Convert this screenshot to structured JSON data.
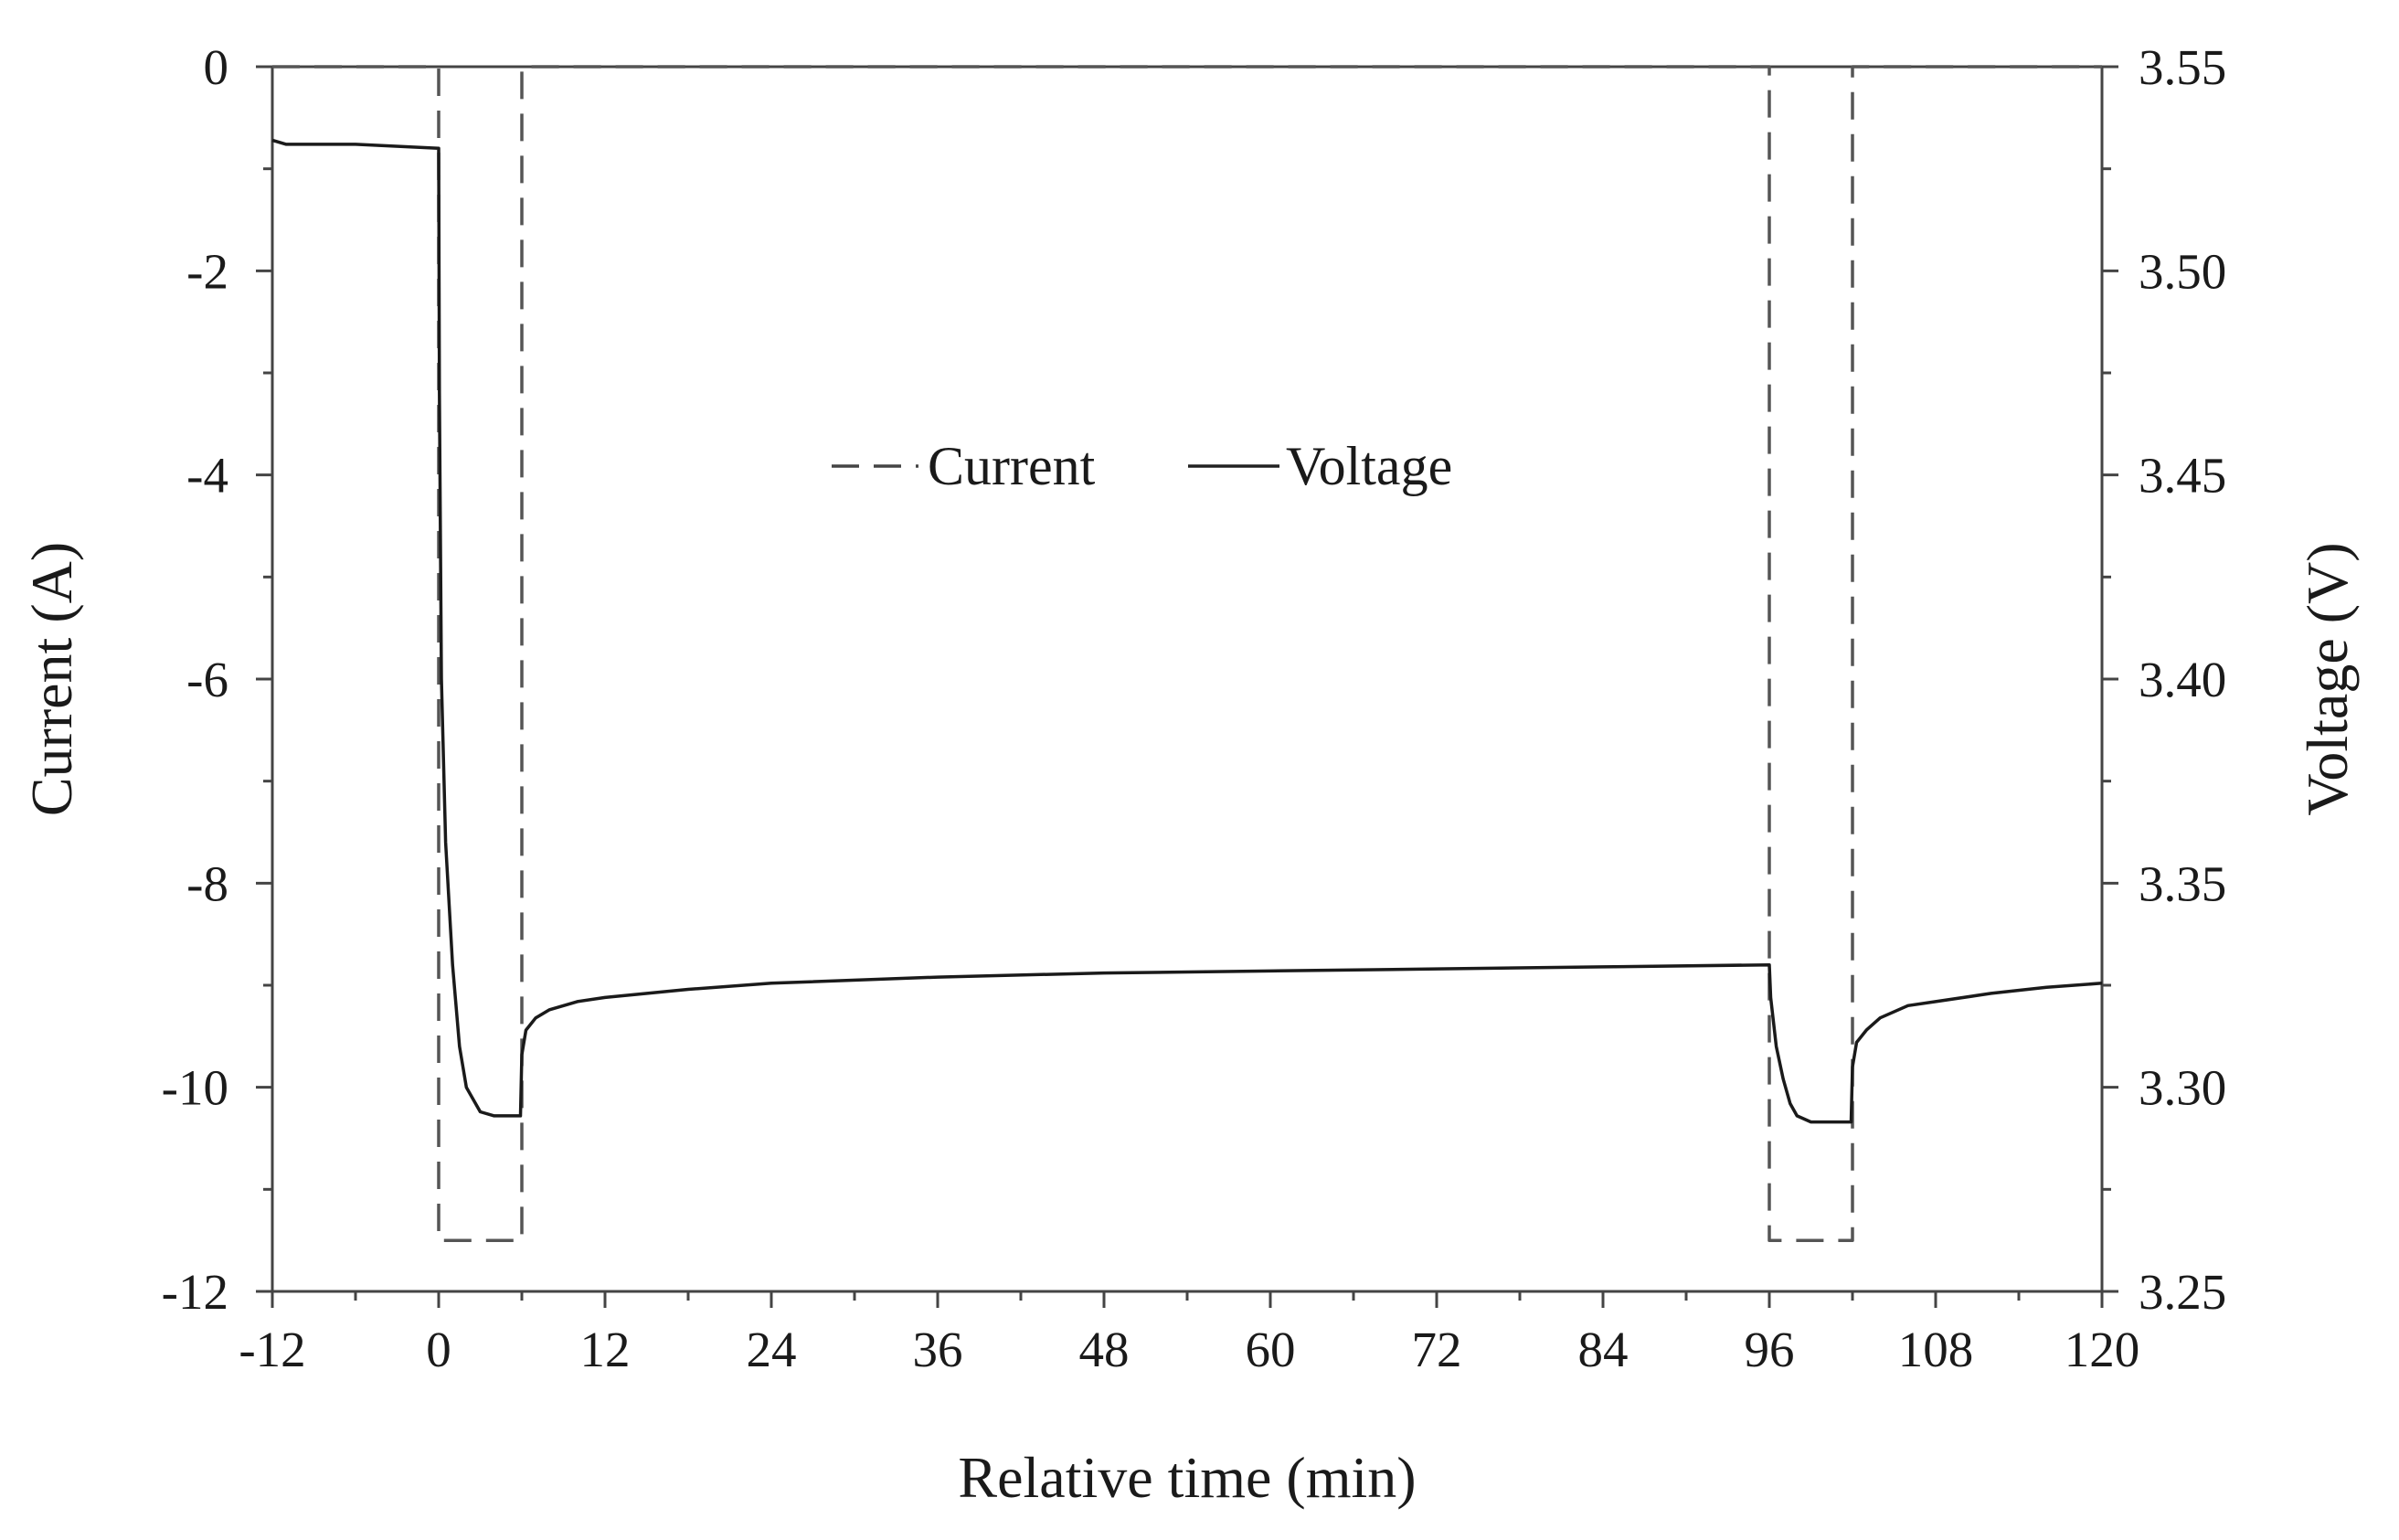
{
  "chart_data": {
    "type": "line",
    "xlabel": "Relative time (min)",
    "ylabel_left": "Current (A)",
    "ylabel_right": "Voltage (V)",
    "xlim": [
      -12,
      120
    ],
    "ylim_left": [
      -12,
      0
    ],
    "ylim_right": [
      3.25,
      3.55
    ],
    "x_ticks": [
      "-12",
      "0",
      "12",
      "24",
      "36",
      "48",
      "60",
      "72",
      "84",
      "96",
      "108",
      "120"
    ],
    "y_left_ticks": [
      "0",
      "-2",
      "-4",
      "-6",
      "-8",
      "-10",
      "-12"
    ],
    "y_right_ticks": [
      "3.55",
      "3.50",
      "3.45",
      "3.40",
      "3.35",
      "3.30",
      "3.25"
    ],
    "grid": false,
    "legend": {
      "position": "center",
      "entries": [
        "Current",
        "Voltage"
      ]
    },
    "series": [
      {
        "name": "Current",
        "axis": "left",
        "style": "dashed",
        "x": [
          -12,
          0,
          0,
          6,
          6,
          96,
          96,
          102,
          102,
          120
        ],
        "y": [
          0,
          0,
          -11.5,
          -11.5,
          0,
          0,
          -11.5,
          -11.5,
          0,
          0
        ]
      },
      {
        "name": "Voltage",
        "axis": "right",
        "style": "solid",
        "x": [
          -12,
          -11,
          -6,
          0,
          0.05,
          0.2,
          0.5,
          1,
          1.5,
          2,
          3,
          4,
          5,
          5.9,
          6,
          6.3,
          7,
          8,
          10,
          12,
          18,
          24,
          36,
          48,
          60,
          72,
          84,
          96,
          96.1,
          96.5,
          97,
          97.5,
          98,
          99,
          100,
          101,
          101.9,
          102,
          102.3,
          103,
          104,
          106,
          108,
          112,
          116,
          120
        ],
        "y": [
          3.532,
          3.531,
          3.531,
          3.53,
          3.47,
          3.4,
          3.36,
          3.33,
          3.31,
          3.3,
          3.294,
          3.293,
          3.293,
          3.293,
          3.308,
          3.314,
          3.317,
          3.319,
          3.321,
          3.322,
          3.324,
          3.3255,
          3.327,
          3.328,
          3.3285,
          3.329,
          3.3295,
          3.33,
          3.322,
          3.31,
          3.302,
          3.296,
          3.293,
          3.2915,
          3.2915,
          3.2915,
          3.2915,
          3.305,
          3.311,
          3.314,
          3.317,
          3.32,
          3.321,
          3.323,
          3.3245,
          3.3255
        ]
      }
    ]
  }
}
